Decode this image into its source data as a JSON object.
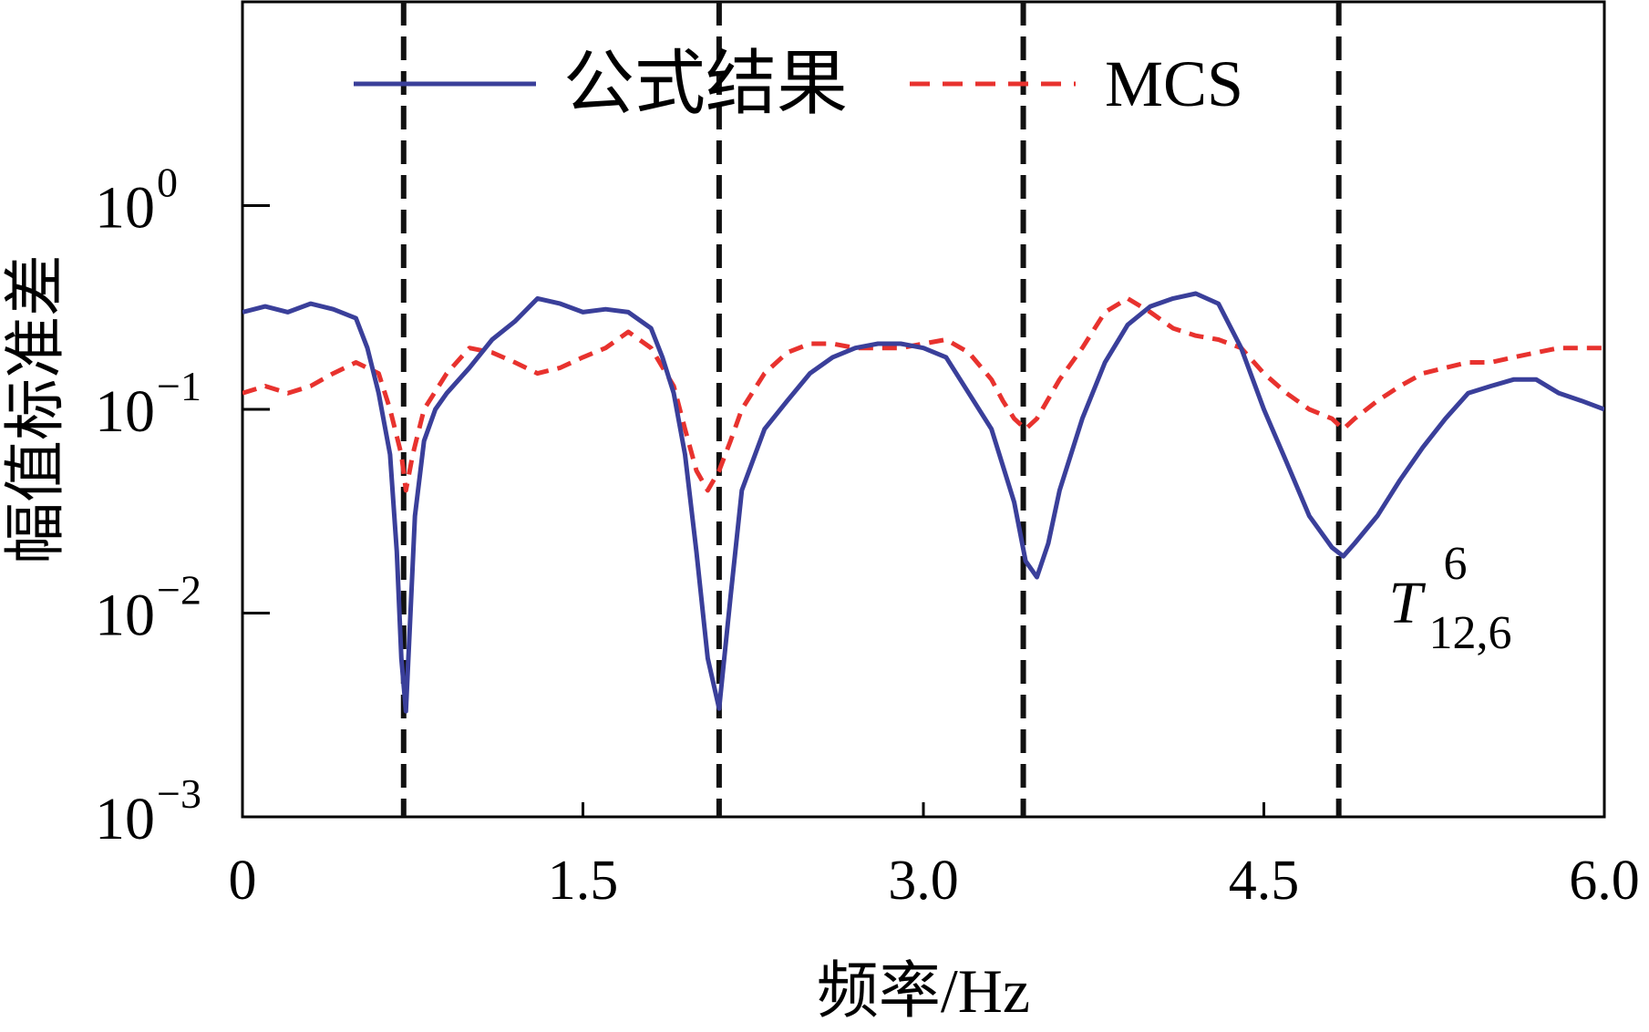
{
  "chart_data": {
    "type": "line",
    "title": "",
    "xlabel": "频率/Hz",
    "ylabel": "幅值标准差",
    "xlim": [
      0,
      6.0
    ],
    "ylim": [
      0.001,
      10
    ],
    "yscale": "log",
    "xticks": [
      {
        "value": 0,
        "label": "0"
      },
      {
        "value": 1.5,
        "label": "1.5"
      },
      {
        "value": 3.0,
        "label": "3.0"
      },
      {
        "value": 4.5,
        "label": "4.5"
      },
      {
        "value": 6.0,
        "label": "6.0"
      }
    ],
    "yticks": [
      {
        "value": 1,
        "base": "10",
        "exp": "0"
      },
      {
        "value": 0.1,
        "base": "10",
        "exp": "−1"
      },
      {
        "value": 0.01,
        "base": "10",
        "exp": "−2"
      },
      {
        "value": 0.001,
        "base": "10",
        "exp": "−3"
      }
    ],
    "legend_position": "top",
    "annotation": {
      "base": "T",
      "sup": "6",
      "sub": "12,6",
      "x": 5.05,
      "y": 0.011
    },
    "vlines": [
      0.71,
      2.1,
      3.44,
      4.83
    ],
    "series": [
      {
        "name": "公式结果",
        "color": "#3a3f9a",
        "style": "solid",
        "x": [
          0,
          0.1,
          0.2,
          0.3,
          0.4,
          0.5,
          0.55,
          0.6,
          0.65,
          0.68,
          0.7,
          0.72,
          0.74,
          0.76,
          0.8,
          0.85,
          0.9,
          1.0,
          1.1,
          1.2,
          1.3,
          1.4,
          1.5,
          1.6,
          1.7,
          1.8,
          1.85,
          1.9,
          1.95,
          2.0,
          2.05,
          2.1,
          2.15,
          2.2,
          2.3,
          2.4,
          2.5,
          2.6,
          2.7,
          2.8,
          2.9,
          3.0,
          3.1,
          3.2,
          3.3,
          3.4,
          3.45,
          3.5,
          3.55,
          3.6,
          3.7,
          3.8,
          3.9,
          4.0,
          4.1,
          4.2,
          4.3,
          4.4,
          4.5,
          4.6,
          4.7,
          4.8,
          4.85,
          4.9,
          5.0,
          5.1,
          5.2,
          5.3,
          5.4,
          5.5,
          5.6,
          5.7,
          5.8,
          5.9,
          6.0
        ],
        "y": [
          0.3,
          0.32,
          0.3,
          0.33,
          0.31,
          0.28,
          0.2,
          0.12,
          0.06,
          0.02,
          0.006,
          0.0033,
          0.01,
          0.03,
          0.07,
          0.1,
          0.12,
          0.16,
          0.22,
          0.27,
          0.35,
          0.33,
          0.3,
          0.31,
          0.3,
          0.25,
          0.18,
          0.12,
          0.06,
          0.02,
          0.006,
          0.0034,
          0.012,
          0.04,
          0.08,
          0.11,
          0.15,
          0.18,
          0.2,
          0.21,
          0.21,
          0.2,
          0.18,
          0.12,
          0.08,
          0.035,
          0.018,
          0.015,
          0.022,
          0.04,
          0.09,
          0.17,
          0.26,
          0.32,
          0.35,
          0.37,
          0.33,
          0.2,
          0.1,
          0.055,
          0.03,
          0.021,
          0.019,
          0.022,
          0.03,
          0.045,
          0.065,
          0.09,
          0.12,
          0.13,
          0.14,
          0.14,
          0.12,
          0.11,
          0.1
        ]
      },
      {
        "name": "MCS",
        "color": "#e8322e",
        "style": "dashed",
        "x": [
          0,
          0.1,
          0.2,
          0.3,
          0.4,
          0.5,
          0.6,
          0.65,
          0.7,
          0.72,
          0.75,
          0.8,
          0.9,
          1.0,
          1.1,
          1.2,
          1.3,
          1.4,
          1.5,
          1.6,
          1.7,
          1.8,
          1.9,
          1.95,
          2.0,
          2.05,
          2.1,
          2.15,
          2.2,
          2.3,
          2.4,
          2.5,
          2.6,
          2.7,
          2.8,
          2.9,
          3.0,
          3.1,
          3.2,
          3.3,
          3.35,
          3.4,
          3.45,
          3.5,
          3.6,
          3.7,
          3.8,
          3.9,
          4.0,
          4.1,
          4.2,
          4.3,
          4.4,
          4.5,
          4.6,
          4.7,
          4.8,
          4.85,
          4.9,
          5.0,
          5.1,
          5.2,
          5.3,
          5.4,
          5.5,
          5.6,
          5.7,
          5.8,
          5.9,
          6.0
        ],
        "y": [
          0.12,
          0.13,
          0.12,
          0.13,
          0.15,
          0.17,
          0.15,
          0.1,
          0.06,
          0.04,
          0.06,
          0.1,
          0.15,
          0.2,
          0.19,
          0.17,
          0.15,
          0.16,
          0.18,
          0.2,
          0.24,
          0.2,
          0.13,
          0.08,
          0.05,
          0.04,
          0.05,
          0.07,
          0.1,
          0.15,
          0.19,
          0.21,
          0.21,
          0.2,
          0.2,
          0.2,
          0.21,
          0.22,
          0.19,
          0.14,
          0.11,
          0.09,
          0.08,
          0.09,
          0.14,
          0.2,
          0.3,
          0.35,
          0.3,
          0.25,
          0.23,
          0.22,
          0.2,
          0.15,
          0.12,
          0.1,
          0.09,
          0.08,
          0.09,
          0.11,
          0.13,
          0.15,
          0.16,
          0.17,
          0.17,
          0.18,
          0.19,
          0.2,
          0.2,
          0.2
        ]
      }
    ]
  }
}
